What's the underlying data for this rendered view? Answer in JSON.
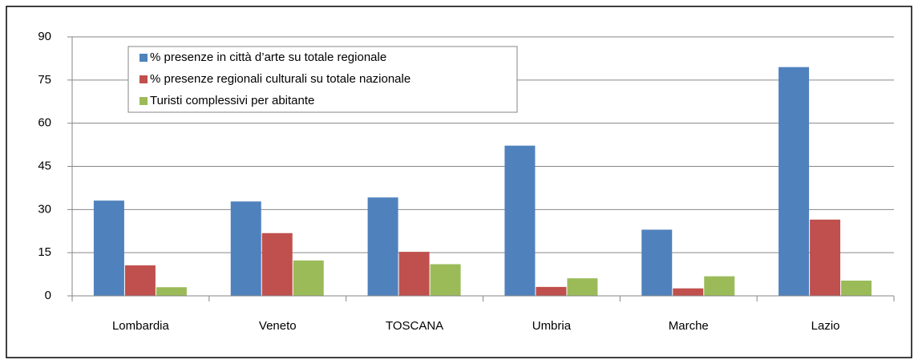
{
  "chart_data": {
    "type": "bar",
    "categories": [
      "Lombardia",
      "Veneto",
      "TOSCANA",
      "Umbria",
      "Marche",
      "Lazio"
    ],
    "series": [
      {
        "name": "% presenze in città d’arte su totale regionale",
        "color": "#4f81bd",
        "values": [
          33.1,
          32.8,
          34.2,
          52.2,
          23.0,
          79.5
        ]
      },
      {
        "name": "% presenze regionali culturali su totale nazionale",
        "color": "#c0504d",
        "values": [
          10.6,
          21.8,
          15.3,
          3.1,
          2.6,
          26.5
        ]
      },
      {
        "name": "Turisti complessivi per abitante",
        "color": "#9bbb59",
        "values": [
          3.0,
          12.3,
          11.0,
          6.1,
          6.8,
          5.3
        ]
      }
    ],
    "ylim": [
      0,
      90
    ],
    "yticks": [
      0,
      15,
      30,
      45,
      60,
      75,
      90
    ],
    "grid": true,
    "legend": "upper left"
  }
}
